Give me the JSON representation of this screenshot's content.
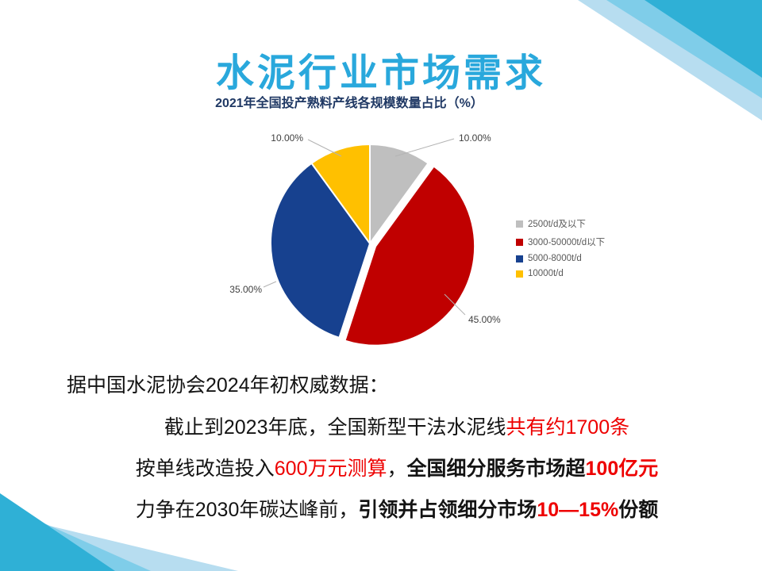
{
  "title": "水泥行业市场需求",
  "chart_data": {
    "type": "pie",
    "title": "2021年全国投产熟料产线各规模数量占比（%）",
    "unit": "%",
    "direction": "clockwise",
    "start_angle_deg": 0,
    "legend_position": "right",
    "slices": [
      {
        "label": "2500t/d及以下",
        "value": 10,
        "display": "10.00%",
        "color": "#BFBFBF",
        "exploded": false
      },
      {
        "label": "3000-50000t/d以下",
        "value": 45,
        "display": "45.00%",
        "color": "#C00000",
        "exploded": true
      },
      {
        "label": "5000-8000t/d",
        "value": 35,
        "display": "35.00%",
        "color": "#17418F",
        "exploded": false
      },
      {
        "label": "10000t/d",
        "value": 10,
        "display": "10.00%",
        "color": "#FFC000",
        "exploded": false
      }
    ]
  },
  "body": {
    "intro": "据中国水泥协会2024年初权威数据：",
    "lines": [
      [
        {
          "text": "截止到2023年底，全国新型干法水泥线",
          "bold": false,
          "red": false
        },
        {
          "text": "共有约1700条",
          "bold": false,
          "red": true
        }
      ],
      [
        {
          "text": "按单线改造投入",
          "bold": false,
          "red": false
        },
        {
          "text": "600万元测算",
          "bold": false,
          "red": true
        },
        {
          "text": "，",
          "bold": false,
          "red": false
        },
        {
          "text": "全国细分服务市场超",
          "bold": true,
          "red": false
        },
        {
          "text": "100亿元",
          "bold": true,
          "red": true
        }
      ],
      [
        {
          "text": "力争在2030年碳达峰前，",
          "bold": false,
          "red": false
        },
        {
          "text": "引领并占领细分市场",
          "bold": true,
          "red": false
        },
        {
          "text": "10—15%",
          "bold": true,
          "red": true
        },
        {
          "text": "份额",
          "bold": true,
          "red": false
        }
      ]
    ]
  },
  "colors": {
    "title_blue": "#29A8DC",
    "chart_title_navy": "#1F3864",
    "accent_red": "#EE0000",
    "legend_text": "#595959",
    "decoration_teal": "#2FB0D6",
    "decoration_mid": "#7FCDE9",
    "decoration_light": "#B7DDF0"
  }
}
